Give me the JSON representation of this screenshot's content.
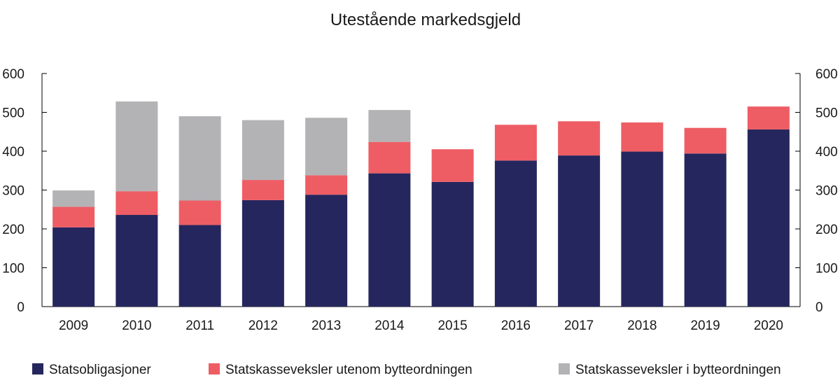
{
  "chart_data": {
    "type": "bar",
    "stacked": true,
    "title": "Utestående markedsgjeld",
    "xlabel": "",
    "ylabel": "",
    "ylim": [
      0,
      600
    ],
    "yticks": [
      0,
      100,
      200,
      300,
      400,
      500,
      600
    ],
    "y_axis_both_sides": true,
    "grid": false,
    "legend_position": "bottom",
    "categories": [
      "2009",
      "2010",
      "2011",
      "2012",
      "2013",
      "2014",
      "2015",
      "2016",
      "2017",
      "2018",
      "2019",
      "2020"
    ],
    "series": [
      {
        "name": "Statsobligasjoner",
        "color": "#26265e",
        "values": [
          204,
          236,
          210,
          274,
          288,
          343,
          321,
          376,
          389,
          399,
          394,
          456
        ]
      },
      {
        "name": "Statskasseveksler utenom bytteordningen",
        "color": "#ee5d64",
        "values": [
          53,
          61,
          63,
          52,
          50,
          81,
          84,
          92,
          88,
          75,
          66,
          59
        ]
      },
      {
        "name": "Statskasseveksler i bytteordningen",
        "color": "#b3b3b6",
        "values": [
          42,
          231,
          217,
          154,
          148,
          82,
          0,
          0,
          0,
          0,
          0,
          0
        ]
      }
    ]
  }
}
